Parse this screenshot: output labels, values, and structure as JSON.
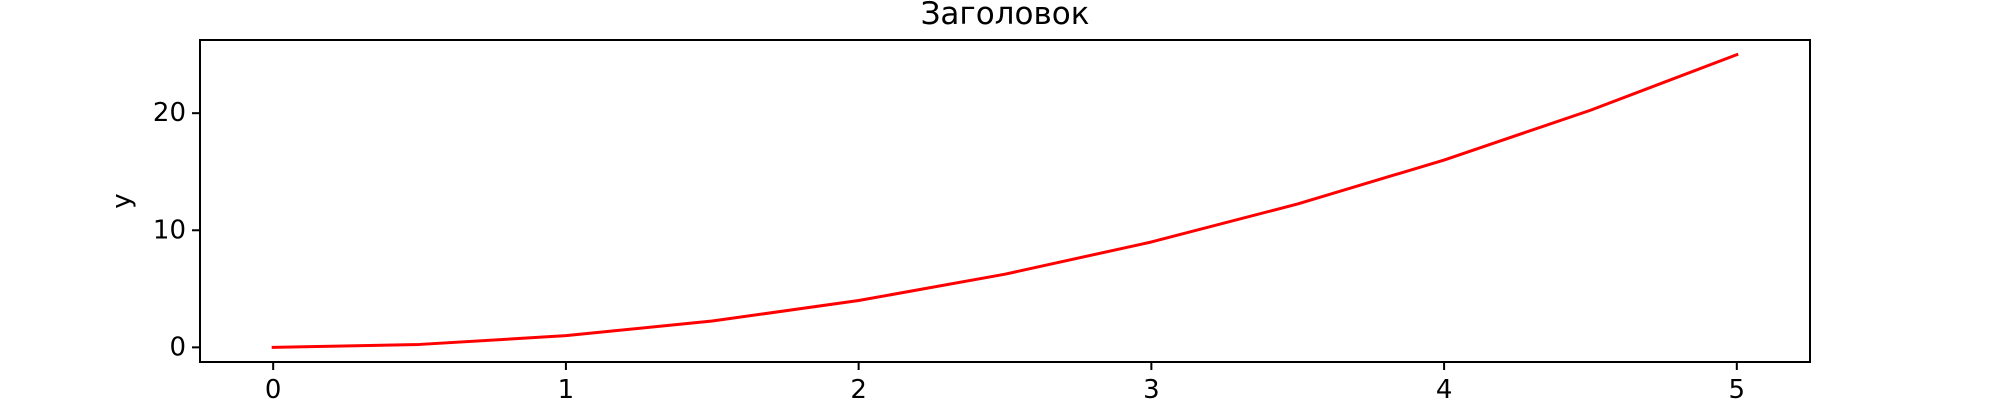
{
  "chart_data": {
    "type": "line",
    "title": "Заголовок",
    "xlabel": "",
    "ylabel": "y",
    "x": [
      0,
      0.5,
      1,
      1.5,
      2,
      2.5,
      3,
      3.5,
      4,
      4.5,
      5
    ],
    "series": [
      {
        "color": "#ff0000",
        "values": [
          0,
          0.25,
          1,
          2.25,
          4,
          6.25,
          9,
          12.25,
          16,
          20.25,
          25
        ]
      }
    ],
    "xlim": [
      -0.25,
      5.25
    ],
    "ylim": [
      -1.25,
      26.25
    ],
    "xticks": [
      0,
      1,
      2,
      3,
      4,
      5
    ],
    "yticks": [
      0,
      10,
      20
    ],
    "grid": false,
    "legend": "none"
  }
}
